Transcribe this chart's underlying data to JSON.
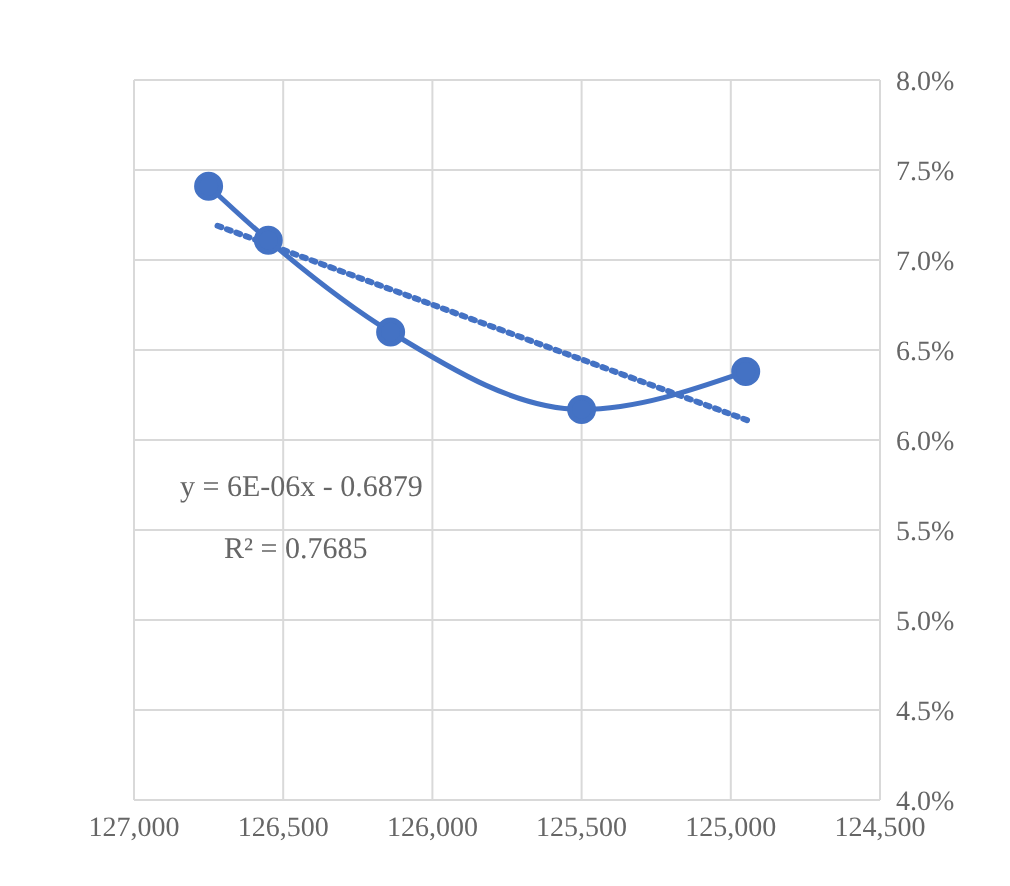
{
  "chart_data": {
    "type": "line",
    "x": [
      126750,
      126550,
      126140,
      125500,
      124950
    ],
    "series": [
      {
        "color": "#4472c4",
        "marker": "circle",
        "line_style": "solid",
        "values": [
          7.41,
          7.11,
          6.6,
          6.17,
          6.38
        ]
      },
      {
        "color": "#4472c4",
        "marker": "none",
        "line_style": "dotted",
        "x": [
          126720,
          124945
        ],
        "values": [
          7.19,
          6.11
        ]
      }
    ],
    "xlim": [
      127000,
      124500
    ],
    "xticks": [
      {
        "value": 127000,
        "label": "127,000"
      },
      {
        "value": 126500,
        "label": "126,500"
      },
      {
        "value": 126000,
        "label": "126,000"
      },
      {
        "value": 125500,
        "label": "125,500"
      },
      {
        "value": 125000,
        "label": "125,000"
      },
      {
        "value": 124500,
        "label": "124,500"
      }
    ],
    "ylim": [
      4,
      8
    ],
    "yticks": [
      {
        "value": 4,
        "label": "4.0%"
      },
      {
        "value": 4.5,
        "label": "4.5%"
      },
      {
        "value": 5,
        "label": "5.0%"
      },
      {
        "value": 5.5,
        "label": "5.5%"
      },
      {
        "value": 6,
        "label": "6.0%"
      },
      {
        "value": 6.5,
        "label": "6.5%"
      },
      {
        "value": 7,
        "label": "7.0%"
      },
      {
        "value": 7.5,
        "label": "7.5%"
      },
      {
        "value": 8,
        "label": "8.0%"
      }
    ],
    "grid": true,
    "annotations": [
      "y = 6E-06x - 0.6879",
      "R² = 0.7685"
    ]
  }
}
